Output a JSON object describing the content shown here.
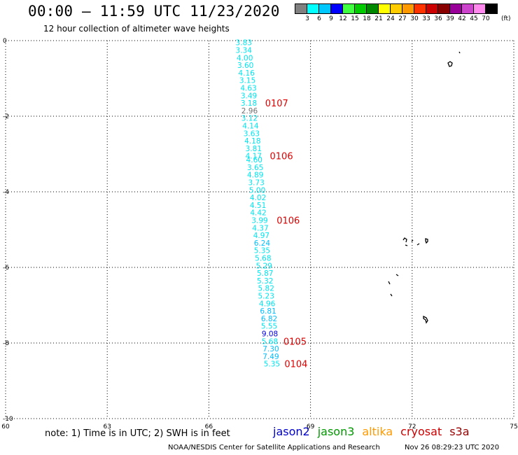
{
  "header": {
    "title": "00:00 – 11:59 UTC 11/23/2020",
    "subtitle": "12 hour collection of altimeter wave heights"
  },
  "color_scale": {
    "colors": [
      "#808080",
      "#00ffff",
      "#00c8ff",
      "#0000ff",
      "#40ff40",
      "#00cc00",
      "#008800",
      "#ffff00",
      "#ffcc00",
      "#ff9900",
      "#ff3300",
      "#cc0000",
      "#880000",
      "#990099",
      "#cc44cc",
      "#ff88ee",
      "#000000"
    ],
    "ticks": [
      "3",
      "6",
      "9",
      "12",
      "15",
      "18",
      "21",
      "24",
      "27",
      "30",
      "33",
      "36",
      "39",
      "42",
      "45",
      "70"
    ],
    "unit": "(ft)"
  },
  "axes": {
    "lon_labels": [
      "60",
      "63",
      "66",
      "69",
      "72",
      "75"
    ],
    "lat_labels": [
      "0",
      "-2",
      "-4",
      "-6",
      "-8",
      "-10"
    ]
  },
  "chart_data": {
    "type": "scatter",
    "xlim": [
      60,
      75
    ],
    "ylim": [
      -10,
      0
    ],
    "grid": true,
    "observations": [
      {
        "lon": 67.03,
        "lat": -0.05,
        "swh": "3.83",
        "color": "#00e5ee"
      },
      {
        "lon": 67.03,
        "lat": -0.25,
        "swh": "3.34",
        "color": "#00e5ee"
      },
      {
        "lon": 67.06,
        "lat": -0.45,
        "swh": "4.00",
        "color": "#00e5ee"
      },
      {
        "lon": 67.08,
        "lat": -0.65,
        "swh": "3.60",
        "color": "#00e5ee"
      },
      {
        "lon": 67.11,
        "lat": -0.85,
        "swh": "4.16",
        "color": "#00e5ee"
      },
      {
        "lon": 67.14,
        "lat": -1.05,
        "swh": "3.15",
        "color": "#00e5ee"
      },
      {
        "lon": 67.17,
        "lat": -1.25,
        "swh": "4.63",
        "color": "#00e5ee"
      },
      {
        "lon": 67.18,
        "lat": -1.45,
        "swh": "3.49",
        "color": "#00e5ee"
      },
      {
        "lon": 67.18,
        "lat": -1.65,
        "swh": "3.18",
        "color": "#00e5ee"
      },
      {
        "lon": 67.2,
        "lat": -1.85,
        "swh": "2.96",
        "color": "#707070"
      },
      {
        "lon": 67.2,
        "lat": -2.05,
        "swh": "3.12",
        "color": "#00e5ee"
      },
      {
        "lon": 67.23,
        "lat": -2.25,
        "swh": "4.14",
        "color": "#00e5ee"
      },
      {
        "lon": 67.26,
        "lat": -2.45,
        "swh": "3.63",
        "color": "#00e5ee"
      },
      {
        "lon": 67.29,
        "lat": -2.65,
        "swh": "4.18",
        "color": "#00e5ee"
      },
      {
        "lon": 67.32,
        "lat": -2.85,
        "swh": "3.81",
        "color": "#00e5ee"
      },
      {
        "lon": 67.32,
        "lat": -3.05,
        "swh": "4.17",
        "color": "#00e5ee"
      },
      {
        "lon": 67.34,
        "lat": -3.15,
        "swh": "4.60",
        "color": "#00e5ee"
      },
      {
        "lon": 67.37,
        "lat": -3.35,
        "swh": "3.65",
        "color": "#00e5ee"
      },
      {
        "lon": 67.37,
        "lat": -3.55,
        "swh": "4.89",
        "color": "#00e5ee"
      },
      {
        "lon": 67.4,
        "lat": -3.75,
        "swh": "3.73",
        "color": "#00e5ee"
      },
      {
        "lon": 67.43,
        "lat": -3.95,
        "swh": "5.00",
        "color": "#00e5ee"
      },
      {
        "lon": 67.45,
        "lat": -4.15,
        "swh": "4.02",
        "color": "#00e5ee"
      },
      {
        "lon": 67.45,
        "lat": -4.35,
        "swh": "4.51",
        "color": "#00e5ee"
      },
      {
        "lon": 67.46,
        "lat": -4.55,
        "swh": "4.42",
        "color": "#00e5ee"
      },
      {
        "lon": 67.5,
        "lat": -4.75,
        "swh": "3.99",
        "color": "#00e5ee"
      },
      {
        "lon": 67.52,
        "lat": -4.95,
        "swh": "4.37",
        "color": "#00e5ee"
      },
      {
        "lon": 67.55,
        "lat": -5.15,
        "swh": "4.97",
        "color": "#00e5ee"
      },
      {
        "lon": 67.57,
        "lat": -5.35,
        "swh": "6.24",
        "color": "#00bfff"
      },
      {
        "lon": 67.57,
        "lat": -5.55,
        "swh": "5.35",
        "color": "#00e5ee"
      },
      {
        "lon": 67.6,
        "lat": -5.75,
        "swh": "5.68",
        "color": "#00e5ee"
      },
      {
        "lon": 67.63,
        "lat": -5.95,
        "swh": "5.29",
        "color": "#00e5ee"
      },
      {
        "lon": 67.66,
        "lat": -6.15,
        "swh": "5.87",
        "color": "#00e5ee"
      },
      {
        "lon": 67.66,
        "lat": -6.35,
        "swh": "5.32",
        "color": "#00e5ee"
      },
      {
        "lon": 67.69,
        "lat": -6.55,
        "swh": "5.82",
        "color": "#00e5ee"
      },
      {
        "lon": 67.69,
        "lat": -6.75,
        "swh": "5.23",
        "color": "#00e5ee"
      },
      {
        "lon": 67.72,
        "lat": -6.95,
        "swh": "4.96",
        "color": "#00e5ee"
      },
      {
        "lon": 67.75,
        "lat": -7.15,
        "swh": "6.81",
        "color": "#00bfff"
      },
      {
        "lon": 67.78,
        "lat": -7.35,
        "swh": "6.82",
        "color": "#00bfff"
      },
      {
        "lon": 67.78,
        "lat": -7.55,
        "swh": "5.55",
        "color": "#00e5ee"
      },
      {
        "lon": 67.8,
        "lat": -7.75,
        "swh": "9.08",
        "color": "#0000dd"
      },
      {
        "lon": 67.8,
        "lat": -7.95,
        "swh": "5.68",
        "color": "#00e5ee"
      },
      {
        "lon": 67.83,
        "lat": -8.15,
        "swh": "7.30",
        "color": "#00bfff"
      },
      {
        "lon": 67.83,
        "lat": -8.35,
        "swh": "7.49",
        "color": "#00bfff"
      },
      {
        "lon": 67.86,
        "lat": -8.55,
        "swh": "5.35",
        "color": "#00e5ee"
      }
    ],
    "time_labels": [
      {
        "text": "0107",
        "lon": 67.66,
        "lat": -1.65
      },
      {
        "text": "0106",
        "lon": 67.8,
        "lat": -3.05
      },
      {
        "text": "0106",
        "lon": 68.0,
        "lat": -4.75
      },
      {
        "text": "0105",
        "lon": 68.2,
        "lat": -7.95
      },
      {
        "text": "0104",
        "lon": 68.23,
        "lat": -8.55
      }
    ]
  },
  "footer": {
    "note": "note: 1) Time is in UTC; 2) SWH is in feet",
    "satellites": [
      {
        "name": "jason2",
        "color": "#0000cc"
      },
      {
        "name": "jason3",
        "color": "#009900"
      },
      {
        "name": "altika",
        "color": "#ff9900"
      },
      {
        "name": "cryosat",
        "color": "#cc0000"
      },
      {
        "name": "s3a",
        "color": "#990000"
      }
    ],
    "credit": "NOAA/NESDIS Center for Satellite Applications and Research",
    "timestamp": "Nov 26 08:29:23 UTC 2020"
  }
}
